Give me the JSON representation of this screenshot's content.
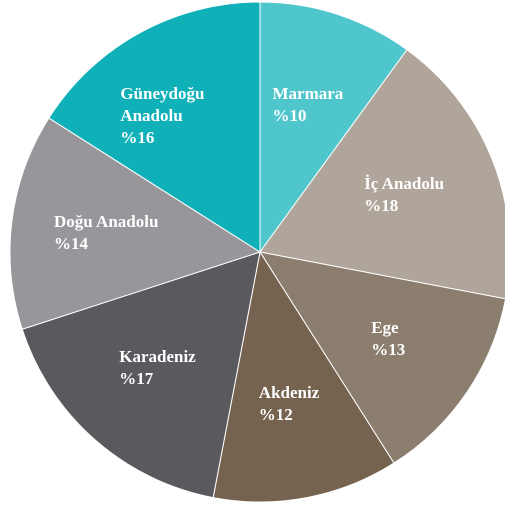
{
  "chart_data": {
    "type": "pie",
    "categories": [
      "Marmara",
      "İç Anadolu",
      "Ege",
      "Akdeniz",
      "Karadeniz",
      "Doğu Anadolu",
      "Güneydoğu Anadolu"
    ],
    "values": [
      10,
      18,
      13,
      12,
      17,
      14,
      16
    ],
    "value_labels": [
      "%10",
      "%18",
      "%13",
      "%12",
      "%17",
      "%14",
      "%16"
    ],
    "colors": [
      "#4fc5cc",
      "#b0a59a",
      "#8c7e6e",
      "#75624f",
      "#5a595e",
      "#98969b",
      "#0fb0b8"
    ]
  }
}
